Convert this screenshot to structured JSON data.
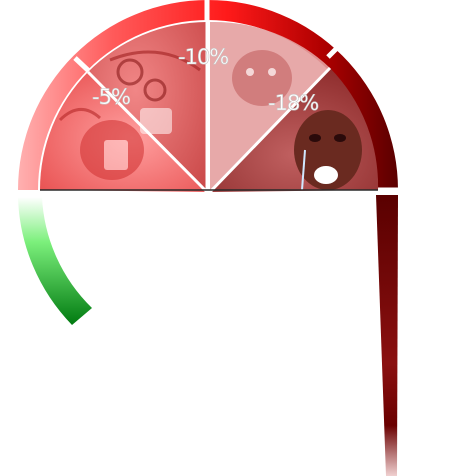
{
  "meter": {
    "segments": [
      {
        "label": "-5%",
        "color": "#ff6a6a"
      },
      {
        "label": "-10%",
        "color": "#f46a6a"
      },
      {
        "label": "-18%",
        "color": "#8a1a1a"
      }
    ],
    "colors": {
      "ring_red": "#ff1a1a",
      "ring_dark": "#6a0000",
      "green_start": "#a6ffa6",
      "green_end": "#008a00",
      "right_bar_top": "#5a0000",
      "right_bar_bottom": "#e8c0c0"
    },
    "images": [
      "screaming-face-left",
      "screaming-face-center",
      "crying-man-right"
    ]
  }
}
